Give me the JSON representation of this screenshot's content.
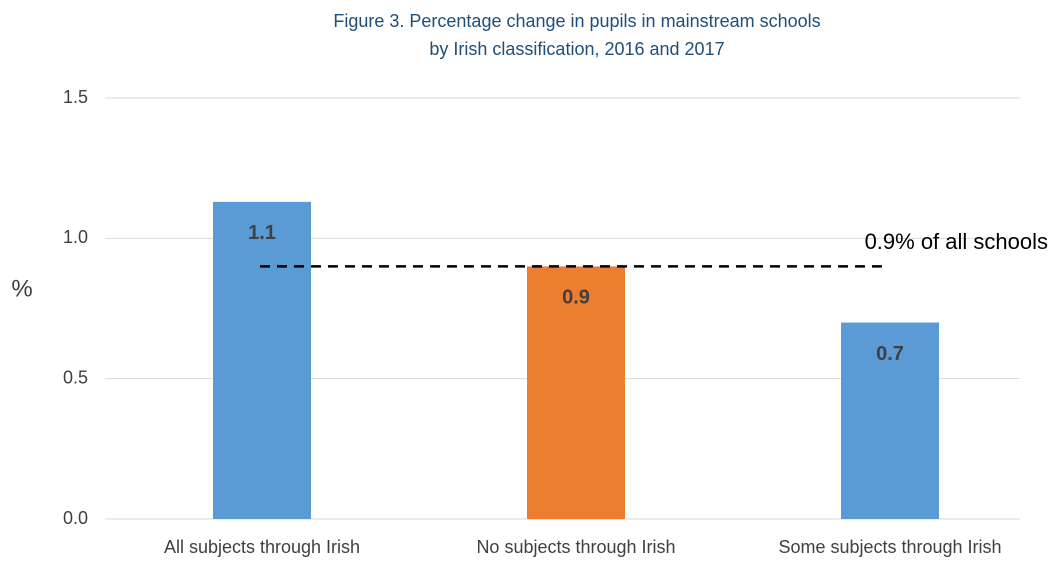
{
  "chart_data": {
    "type": "bar",
    "title": [
      "Figure 3. Percentage change in pupils in mainstream schools",
      "by Irish classification, 2016 and 2017"
    ],
    "ylabel": "%",
    "categories": [
      "All subjects through Irish",
      "No subjects through Irish",
      "Some subjects through Irish"
    ],
    "values": [
      1.13,
      0.9,
      0.7
    ],
    "value_labels": [
      "1.1",
      "0.9",
      "0.7"
    ],
    "colors": [
      "#5b9bd5",
      "#ed7d31",
      "#5b9bd5"
    ],
    "ylim": [
      0,
      1.5
    ],
    "yticks": [
      {
        "value": 0,
        "label": "0.0"
      },
      0.5,
      {
        "value": 1,
        "label": "1.0"
      },
      1.5
    ],
    "grid": true,
    "reference_line": {
      "value": 0.9,
      "label": "0.9% of all schools"
    }
  }
}
